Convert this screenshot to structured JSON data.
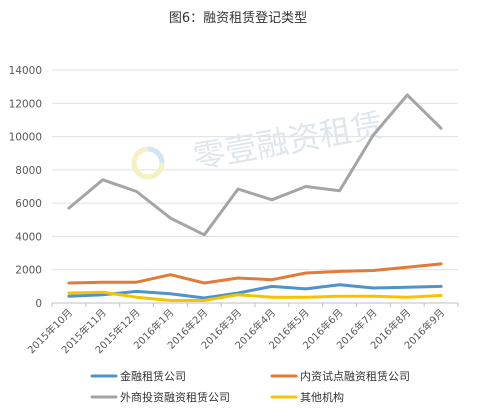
{
  "chart_data": {
    "type": "line",
    "title": "图6：融资租赁登记类型",
    "watermark": "零壹融资租赁",
    "categories": [
      "2015年10月",
      "2015年11月",
      "2015年12月",
      "2016年1月",
      "2016年2月",
      "2016年3月",
      "2016年4月",
      "2016年5月",
      "2016年6月",
      "2016年7月",
      "2016年8月",
      "2016年9月"
    ],
    "ylim": [
      0,
      14000
    ],
    "yticks": [
      "0",
      "2000",
      "4000",
      "6000",
      "8000",
      "10000",
      "12000",
      "14000"
    ],
    "grid": true,
    "legend_position": "bottom",
    "series": [
      {
        "name": "金融租赁公司",
        "color": "#4f93c8",
        "values": [
          400,
          500,
          700,
          550,
          300,
          600,
          1000,
          850,
          1100,
          900,
          950,
          1000
        ]
      },
      {
        "name": "内资试点融资租赁公司",
        "color": "#e07b39",
        "values": [
          1200,
          1250,
          1250,
          1700,
          1200,
          1500,
          1400,
          1800,
          1900,
          1950,
          2150,
          2350
        ]
      },
      {
        "name": "外商投资融资租赁公司",
        "color": "#a5a5a5",
        "values": [
          5700,
          7400,
          6700,
          5100,
          4100,
          6850,
          6200,
          7000,
          6750,
          10100,
          12500,
          10500
        ]
      },
      {
        "name": "其他机构",
        "color": "#f5c400",
        "values": [
          600,
          650,
          350,
          150,
          150,
          500,
          350,
          350,
          400,
          400,
          350,
          450
        ]
      }
    ]
  }
}
